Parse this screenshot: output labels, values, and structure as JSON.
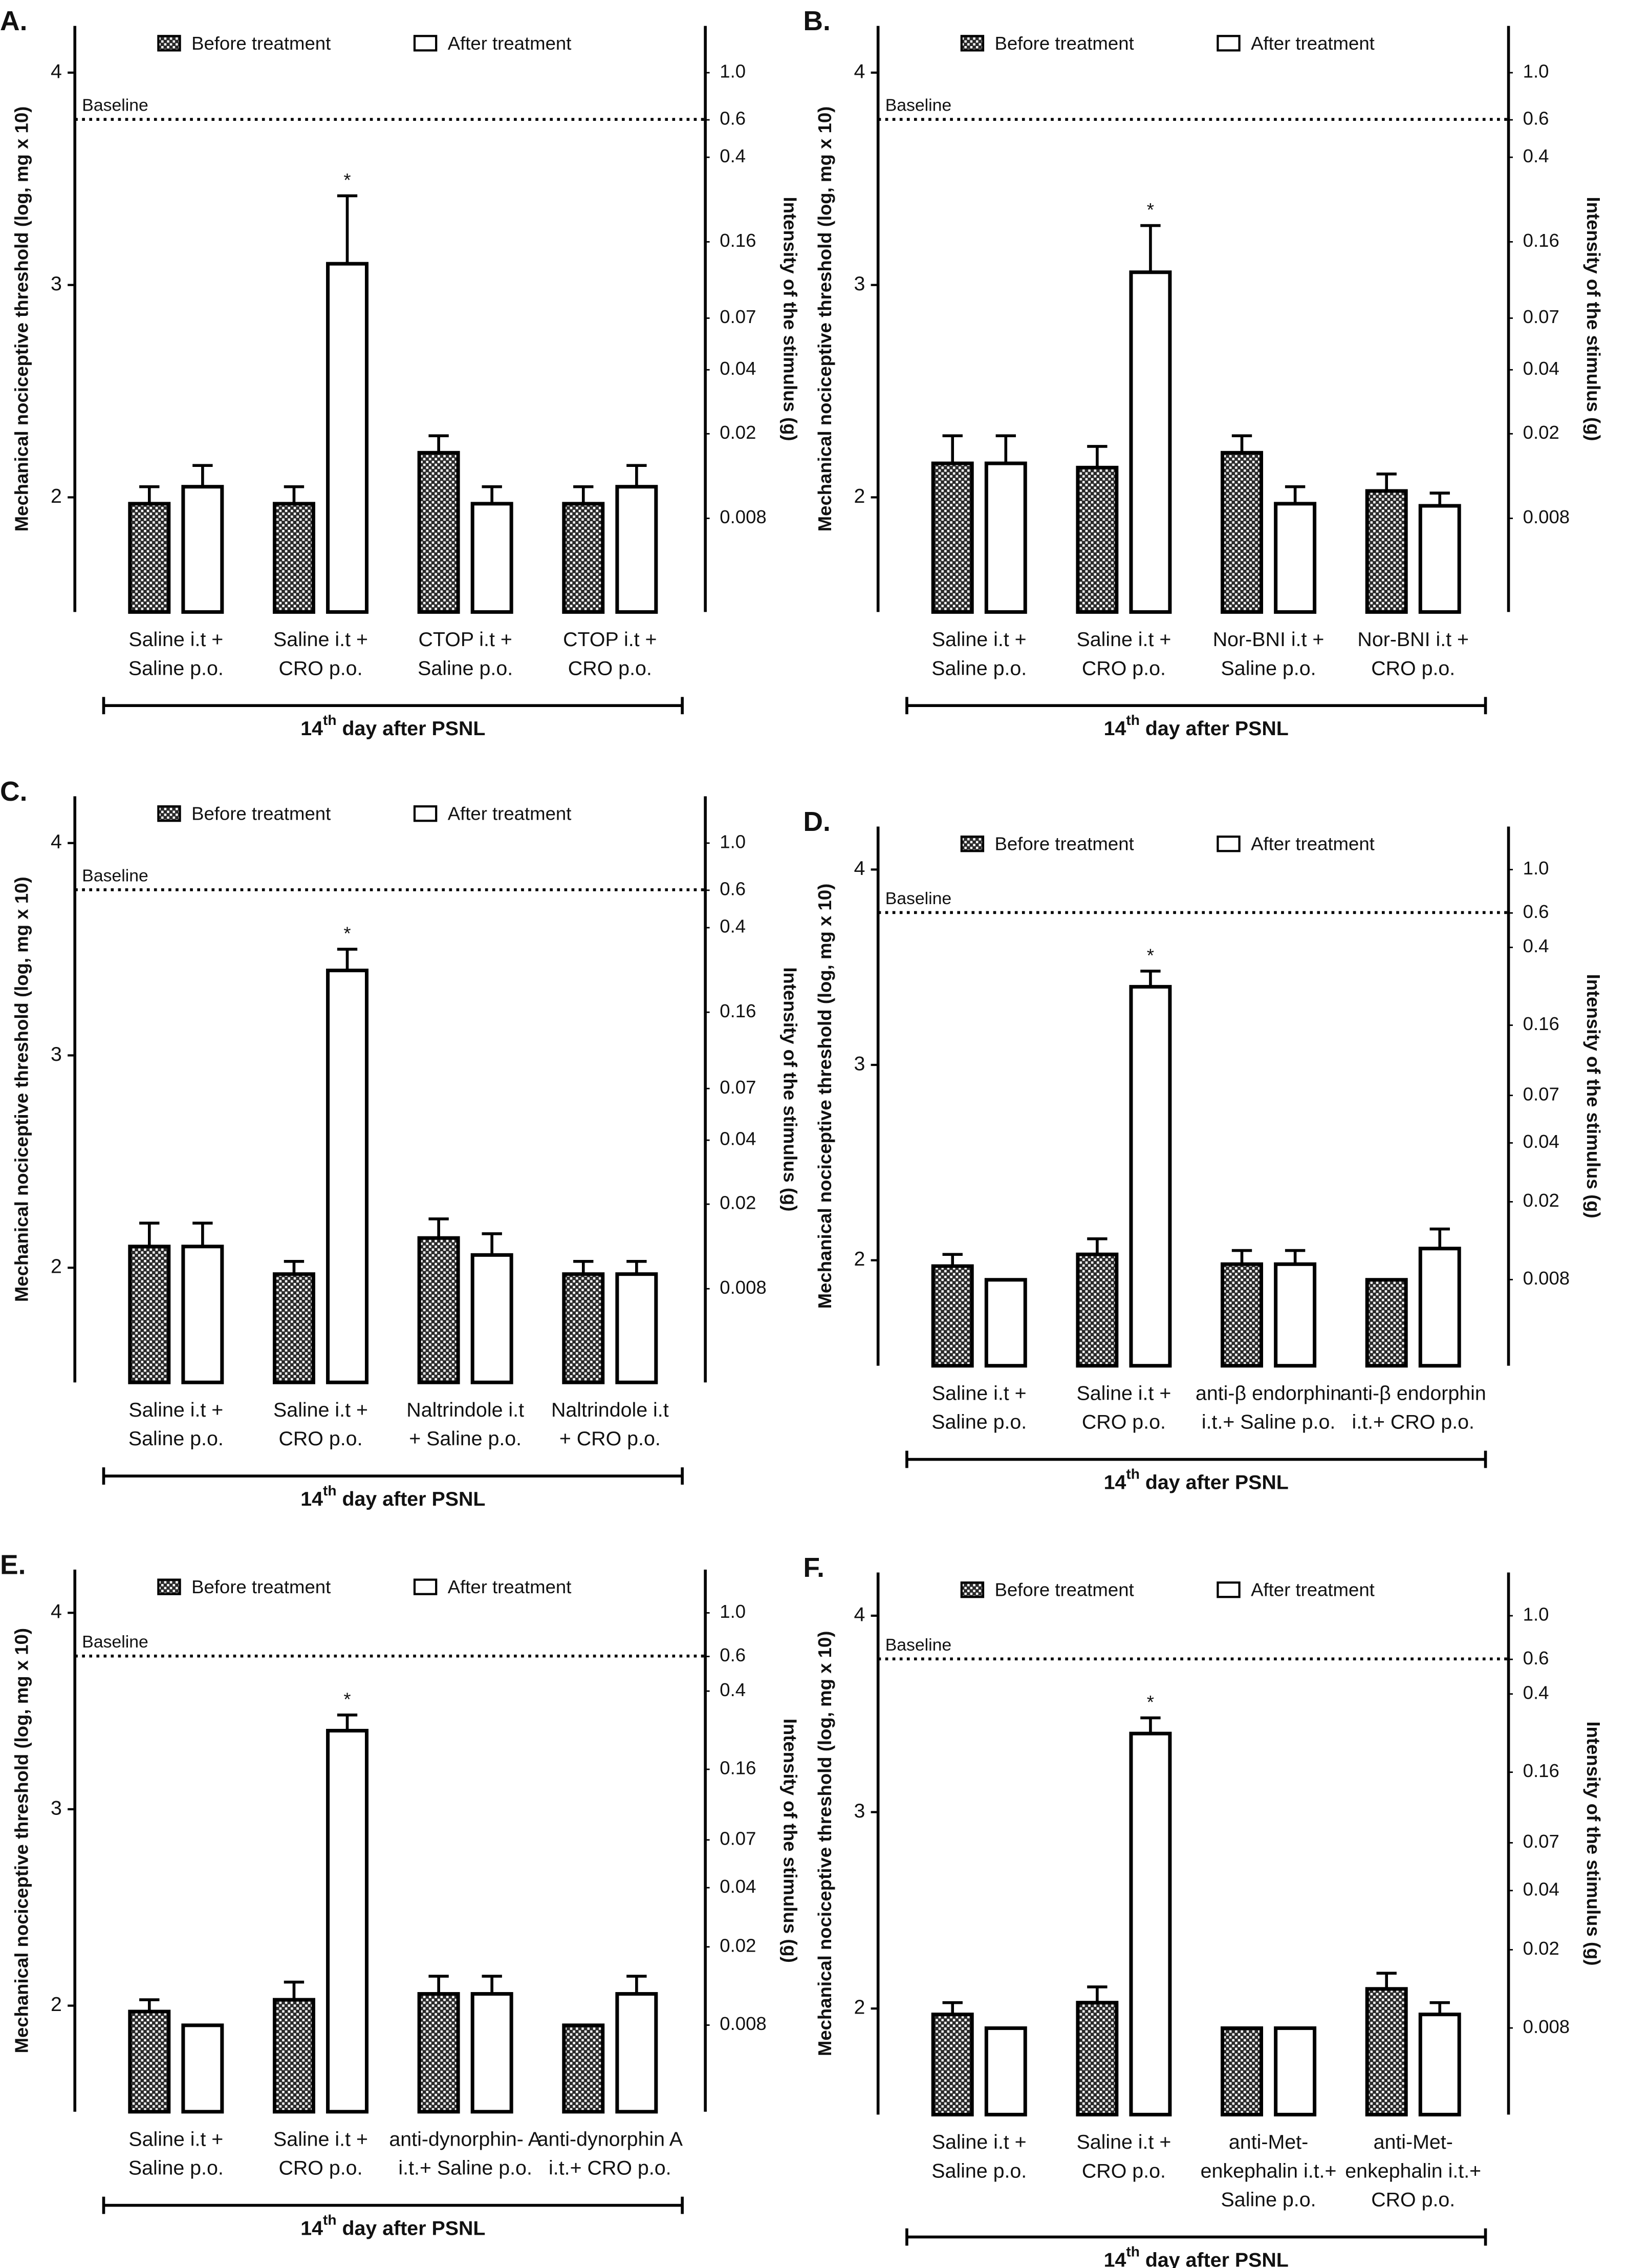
{
  "chart_data": [
    {
      "type": "bar",
      "panel": "A.",
      "ylabel": "Mechanical nociceptive threshold (log, mg x 10)",
      "y2label": "Intensity of the stimulus (g)",
      "xlabel": {
        "number": "14",
        "suffix": "th",
        "text": " day after PSNL"
      },
      "baseline": {
        "label": "Baseline",
        "value": 3.78
      },
      "categories": [
        [
          "Saline i.t +",
          "Saline p.o."
        ],
        [
          "Saline i.t +",
          "CRO p.o."
        ],
        [
          "CTOP i.t +",
          "Saline p.o."
        ],
        [
          "CTOP i.t +",
          "CRO p.o."
        ]
      ],
      "series": [
        {
          "name": "Before treatment",
          "color": "#333333",
          "pattern": "checkered",
          "values": [
            1.97,
            1.97,
            2.21,
            1.97
          ],
          "errors": [
            0.08,
            0.08,
            0.08,
            0.08
          ]
        },
        {
          "name": "After treatment",
          "color": "#ffffff",
          "values": [
            2.05,
            3.1,
            1.97,
            2.05
          ],
          "errors": [
            0.1,
            0.32,
            0.08,
            0.1
          ],
          "markers": [
            null,
            "*",
            null,
            null
          ]
        }
      ],
      "ylim": [
        1.46,
        4.22
      ],
      "yticks": [
        2,
        3,
        4
      ],
      "y2lim": [
        0.0029,
        1.66
      ],
      "y2log": true,
      "y2ticks": [
        {
          "value": 1,
          "label": "1.0"
        },
        0.6,
        0.4,
        0.16,
        0.07,
        0.04,
        0.02,
        0.008
      ]
    },
    {
      "type": "bar",
      "panel": "B.",
      "ylabel": "Mechanical nociceptive threshold (log, mg x 10)",
      "y2label": "Intensity of the stimulus (g)",
      "xlabel": {
        "number": "14",
        "suffix": "th",
        "text": " day after PSNL"
      },
      "baseline": {
        "label": "Baseline",
        "value": 3.78
      },
      "categories": [
        [
          "Saline i.t +",
          "Saline p.o."
        ],
        [
          "Saline i.t +",
          "CRO p.o."
        ],
        [
          "Nor-BNI i.t +",
          "Saline p.o."
        ],
        [
          "Nor-BNI i.t +",
          "CRO p.o."
        ]
      ],
      "series": [
        {
          "name": "Before treatment",
          "color": "#333333",
          "pattern": "checkered",
          "values": [
            2.16,
            2.14,
            2.21,
            2.03
          ],
          "errors": [
            0.13,
            0.1,
            0.08,
            0.08
          ]
        },
        {
          "name": "After treatment",
          "color": "#ffffff",
          "values": [
            2.16,
            3.06,
            1.97,
            1.96
          ],
          "errors": [
            0.13,
            0.22,
            0.08,
            0.06
          ],
          "markers": [
            null,
            "*",
            null,
            null
          ]
        }
      ],
      "ylim": [
        1.46,
        4.22
      ],
      "yticks": [
        2,
        3,
        4
      ],
      "y2lim": [
        0.0029,
        1.66
      ],
      "y2log": true,
      "y2ticks": [
        {
          "value": 1,
          "label": "1.0"
        },
        0.6,
        0.4,
        0.16,
        0.07,
        0.04,
        0.02,
        0.008
      ]
    },
    {
      "type": "bar",
      "panel": "C.",
      "ylabel": "Mechanical nociceptive threshold (log, mg x 10)",
      "y2label": "Intensity of the stimulus (g)",
      "xlabel": {
        "number": "14",
        "suffix": "th",
        "text": " day after PSNL"
      },
      "baseline": {
        "label": "Baseline",
        "value": 3.78
      },
      "categories": [
        [
          "Saline i.t +",
          "Saline p.o."
        ],
        [
          "Saline i.t +",
          "CRO p.o."
        ],
        [
          "Naltrindole i.t",
          "+ Saline p.o."
        ],
        [
          "Naltrindole i.t",
          "+ CRO p.o."
        ]
      ],
      "series": [
        {
          "name": "Before treatment",
          "color": "#333333",
          "pattern": "checkered",
          "values": [
            2.1,
            1.97,
            2.14,
            1.97
          ],
          "errors": [
            0.11,
            0.06,
            0.09,
            0.06
          ]
        },
        {
          "name": "After treatment",
          "color": "#ffffff",
          "values": [
            2.1,
            3.4,
            2.06,
            1.97
          ],
          "errors": [
            0.11,
            0.1,
            0.1,
            0.06
          ],
          "markers": [
            null,
            "*",
            null,
            null
          ]
        }
      ],
      "ylim": [
        1.46,
        4.22
      ],
      "yticks": [
        2,
        3,
        4
      ],
      "y2lim": [
        0.0029,
        1.66
      ],
      "y2log": true,
      "y2ticks": [
        {
          "value": 1,
          "label": "1.0"
        },
        0.6,
        0.4,
        0.16,
        0.07,
        0.04,
        0.02,
        0.008
      ]
    },
    {
      "type": "bar",
      "panel": "D.",
      "ylabel": "Mechanical nociceptive threshold (log, mg x 10)",
      "y2label": "Intensity of the stimulus (g)",
      "xlabel": {
        "number": "14",
        "suffix": "th",
        "text": " day after PSNL"
      },
      "baseline": {
        "label": "Baseline",
        "value": 3.78
      },
      "categories": [
        [
          "Saline i.t +",
          "Saline p.o."
        ],
        [
          "Saline i.t +",
          "CRO p.o."
        ],
        [
          "anti-β endorphin",
          "i.t.+ Saline p.o."
        ],
        [
          "anti-β endorphin",
          "i.t.+ CRO p.o."
        ]
      ],
      "series": [
        {
          "name": "Before treatment",
          "color": "#333333",
          "pattern": "checkered",
          "values": [
            1.97,
            2.03,
            1.98,
            1.9
          ],
          "errors": [
            0.06,
            0.08,
            0.07,
            0
          ]
        },
        {
          "name": "After treatment",
          "color": "#ffffff",
          "values": [
            1.9,
            3.4,
            1.98,
            2.06
          ],
          "errors": [
            0,
            0.08,
            0.07,
            0.1
          ],
          "markers": [
            null,
            "*",
            null,
            null
          ]
        }
      ],
      "ylim": [
        1.46,
        4.22
      ],
      "yticks": [
        2,
        3,
        4
      ],
      "y2lim": [
        0.0029,
        1.66
      ],
      "y2log": true,
      "y2ticks": [
        {
          "value": 1,
          "label": "1.0"
        },
        0.6,
        0.4,
        0.16,
        0.07,
        0.04,
        0.02,
        0.008
      ]
    },
    {
      "type": "bar",
      "panel": "E.",
      "ylabel": "Mechanical nociceptive threshold (log, mg x 10)",
      "y2label": "Intensity of the stimulus (g)",
      "xlabel": {
        "number": "14",
        "suffix": "th",
        "text": " day after PSNL"
      },
      "baseline": {
        "label": "Baseline",
        "value": 3.78
      },
      "categories": [
        [
          "Saline i.t +",
          "Saline p.o."
        ],
        [
          "Saline i.t +",
          "CRO p.o."
        ],
        [
          "anti-dynorphin- A",
          "i.t.+ Saline p.o."
        ],
        [
          "anti-dynorphin A",
          "i.t.+ CRO p.o."
        ]
      ],
      "series": [
        {
          "name": "Before treatment",
          "color": "#333333",
          "pattern": "checkered",
          "values": [
            1.97,
            2.03,
            2.06,
            1.9
          ],
          "errors": [
            0.06,
            0.09,
            0.09,
            0
          ]
        },
        {
          "name": "After treatment",
          "color": "#ffffff",
          "values": [
            1.9,
            3.4,
            2.06,
            2.06
          ],
          "errors": [
            0,
            0.08,
            0.09,
            0.09
          ],
          "markers": [
            null,
            "*",
            null,
            null
          ]
        }
      ],
      "ylim": [
        1.46,
        4.22
      ],
      "yticks": [
        2,
        3,
        4
      ],
      "y2lim": [
        0.0029,
        1.66
      ],
      "y2log": true,
      "y2ticks": [
        {
          "value": 1,
          "label": "1.0"
        },
        0.6,
        0.4,
        0.16,
        0.07,
        0.04,
        0.02,
        0.008
      ]
    },
    {
      "type": "bar",
      "panel": "F.",
      "ylabel": "Mechanical nociceptive threshold (log, mg x 10)",
      "y2label": "Intensity of the stimulus (g)",
      "xlabel": {
        "number": "14",
        "suffix": "th",
        "text": " day after PSNL"
      },
      "baseline": {
        "label": "Baseline",
        "value": 3.78
      },
      "categories": [
        [
          "Saline i.t +",
          "Saline p.o."
        ],
        [
          "Saline i.t +",
          "CRO p.o."
        ],
        [
          "anti-Met-",
          "enkephalin i.t.+",
          "Saline p.o."
        ],
        [
          "anti-Met-",
          "enkephalin i.t.+",
          "CRO p.o."
        ]
      ],
      "series": [
        {
          "name": "Before treatment",
          "color": "#333333",
          "pattern": "checkered",
          "values": [
            1.97,
            2.03,
            1.9,
            2.1
          ],
          "errors": [
            0.06,
            0.08,
            0,
            0.08
          ]
        },
        {
          "name": "After treatment",
          "color": "#ffffff",
          "values": [
            1.9,
            3.4,
            1.9,
            1.97
          ],
          "errors": [
            0,
            0.08,
            0,
            0.06
          ],
          "markers": [
            null,
            "*",
            null,
            null
          ]
        }
      ],
      "ylim": [
        1.46,
        4.22
      ],
      "yticks": [
        2,
        3,
        4
      ],
      "y2lim": [
        0.0029,
        1.66
      ],
      "y2log": true,
      "y2ticks": [
        {
          "value": 1,
          "label": "1.0"
        },
        0.6,
        0.4,
        0.16,
        0.07,
        0.04,
        0.02,
        0.008
      ]
    }
  ]
}
